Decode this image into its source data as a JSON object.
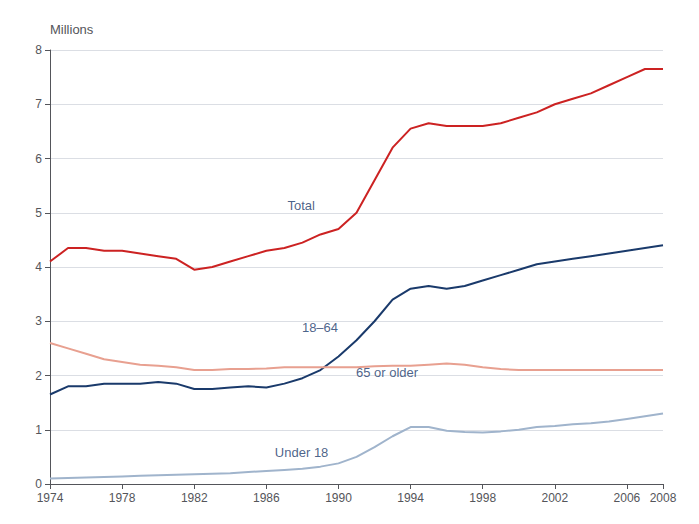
{
  "chart_data": {
    "type": "line",
    "x": [
      1974,
      1975,
      1976,
      1977,
      1978,
      1979,
      1980,
      1981,
      1982,
      1983,
      1984,
      1985,
      1986,
      1987,
      1988,
      1989,
      1990,
      1991,
      1992,
      1993,
      1994,
      1995,
      1996,
      1997,
      1998,
      1999,
      2000,
      2001,
      2002,
      2003,
      2004,
      2005,
      2006,
      2007,
      2008
    ],
    "series": [
      {
        "name": "Total",
        "color": "#cc2222",
        "values": [
          4.1,
          4.35,
          4.35,
          4.3,
          4.3,
          4.25,
          4.2,
          4.15,
          3.95,
          4.0,
          4.1,
          4.2,
          4.3,
          4.35,
          4.45,
          4.6,
          4.7,
          5.0,
          5.6,
          6.2,
          6.55,
          6.65,
          6.6,
          6.6,
          6.6,
          6.65,
          6.75,
          6.85,
          7.0,
          7.1,
          7.2,
          7.35,
          7.5,
          7.65,
          7.65
        ]
      },
      {
        "name": "18–64",
        "color": "#1a3a6b",
        "values": [
          1.65,
          1.8,
          1.8,
          1.85,
          1.85,
          1.85,
          1.88,
          1.85,
          1.75,
          1.75,
          1.78,
          1.8,
          1.78,
          1.85,
          1.95,
          2.1,
          2.35,
          2.65,
          3.0,
          3.4,
          3.6,
          3.65,
          3.6,
          3.65,
          3.75,
          3.85,
          3.95,
          4.05,
          4.1,
          4.15,
          4.2,
          4.25,
          4.3,
          4.35,
          4.4
        ]
      },
      {
        "name": "65 or older",
        "color": "#e8a090",
        "values": [
          2.6,
          2.5,
          2.4,
          2.3,
          2.25,
          2.2,
          2.18,
          2.15,
          2.1,
          2.1,
          2.12,
          2.12,
          2.13,
          2.15,
          2.15,
          2.15,
          2.15,
          2.15,
          2.17,
          2.18,
          2.18,
          2.2,
          2.22,
          2.2,
          2.15,
          2.12,
          2.1,
          2.1,
          2.1,
          2.1,
          2.1,
          2.1,
          2.1,
          2.1,
          2.1
        ]
      },
      {
        "name": "Under 18",
        "color": "#a0b4cc",
        "values": [
          0.1,
          0.11,
          0.12,
          0.13,
          0.14,
          0.15,
          0.16,
          0.17,
          0.18,
          0.19,
          0.2,
          0.22,
          0.24,
          0.26,
          0.28,
          0.32,
          0.38,
          0.5,
          0.68,
          0.88,
          1.05,
          1.05,
          0.98,
          0.96,
          0.95,
          0.97,
          1.0,
          1.05,
          1.07,
          1.1,
          1.12,
          1.15,
          1.2,
          1.25,
          1.3
        ]
      }
    ],
    "ylabel": "Millions",
    "annotations": [
      {
        "text": "Total",
        "x": 1987.2,
        "y": 5.0,
        "color": "#1a3a6b"
      },
      {
        "text": "18–64",
        "x": 1988.0,
        "y": 2.75,
        "color": "#1a3a6b"
      },
      {
        "text": "65 or older",
        "x": 1991.0,
        "y": 1.92,
        "color": "#1a3a6b"
      },
      {
        "text": "Under 18",
        "x": 1986.5,
        "y": 0.45,
        "color": "#1a3a6b"
      }
    ],
    "xlim": [
      1974,
      2008
    ],
    "xticks": [
      1974,
      1978,
      1982,
      1986,
      1990,
      1994,
      1998,
      2002,
      2006,
      2008
    ],
    "ylim": [
      0,
      8
    ],
    "yticks": [
      0,
      1,
      2,
      3,
      4,
      5,
      6,
      7,
      8
    ],
    "grid": true
  }
}
